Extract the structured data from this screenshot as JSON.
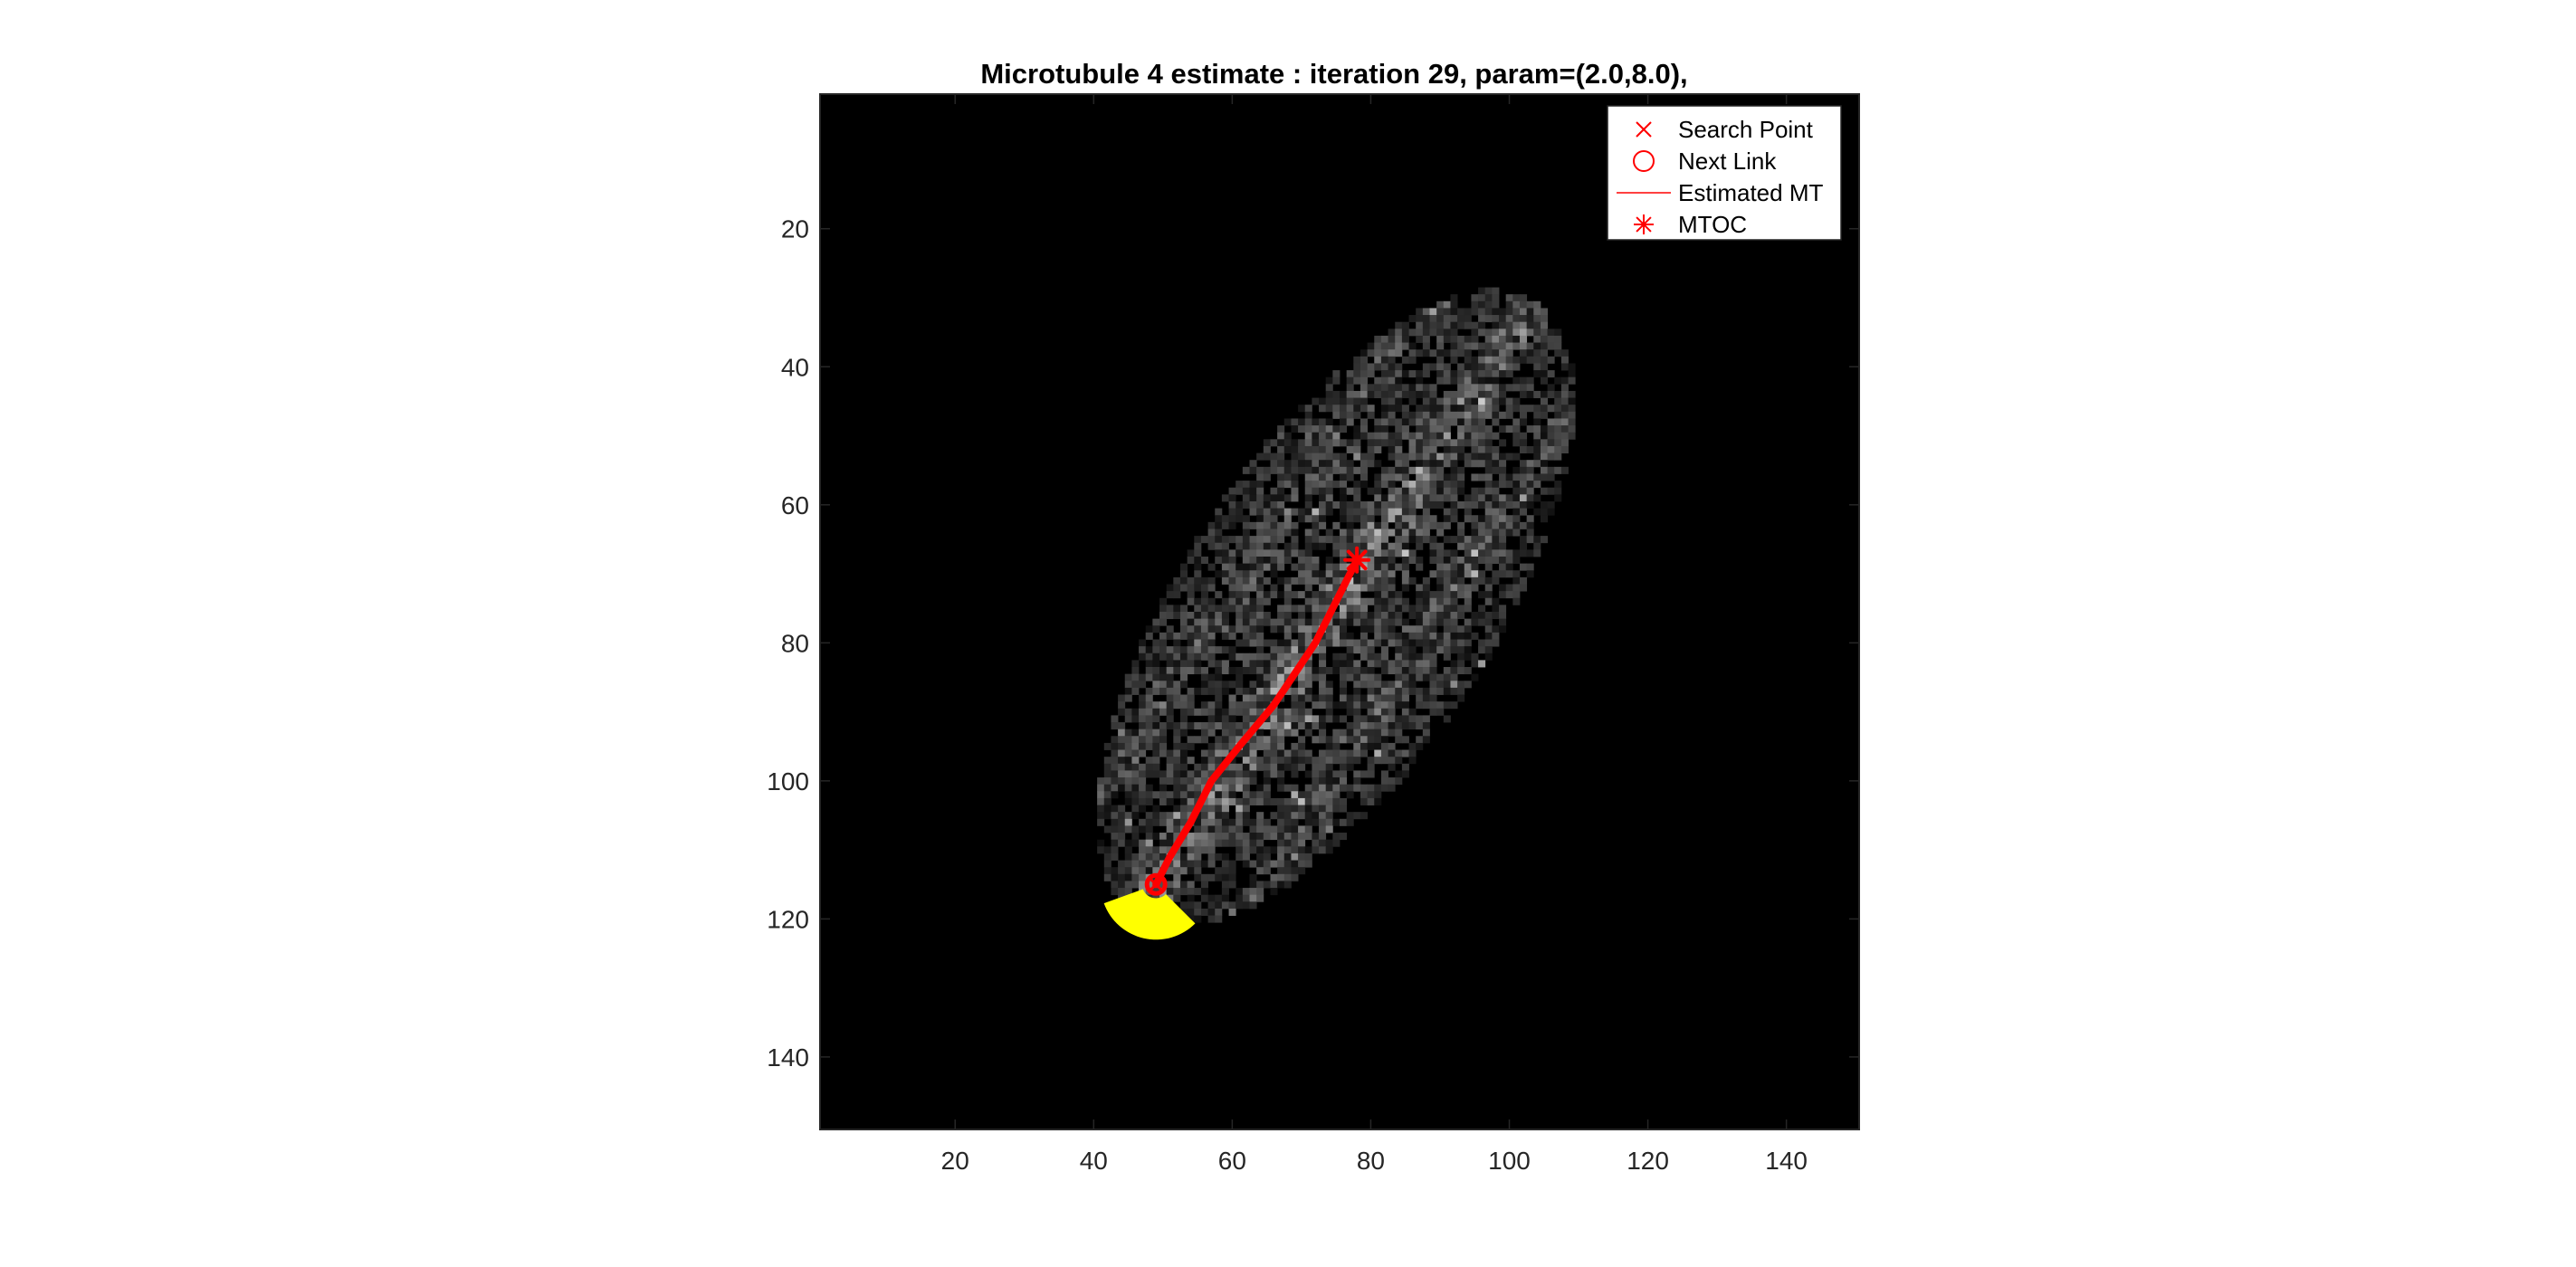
{
  "chart_data": {
    "type": "scatter",
    "title": "Microtubule 4 estimate : iteration 29, param=(2.0,8.0),",
    "xlabel": "",
    "ylabel": "",
    "xlim": [
      0.5,
      150.5
    ],
    "ylim": [
      0.5,
      150.5
    ],
    "y_reversed": true,
    "xticks": [
      20,
      40,
      60,
      80,
      100,
      120,
      140
    ],
    "yticks": [
      20,
      40,
      60,
      80,
      100,
      120,
      140
    ],
    "background_color": "#000000",
    "series_color": "#ff0000",
    "search_region_color": "#ffff00",
    "legend_position": "top-right",
    "legend": [
      {
        "marker": "x",
        "label": "Search Point"
      },
      {
        "marker": "o",
        "label": "Next Link"
      },
      {
        "marker": "line",
        "label": "Estimated MT"
      },
      {
        "marker": "asterisk",
        "label": "MTOC"
      }
    ],
    "estimated_mt": {
      "x": [
        78,
        76,
        72,
        66,
        61,
        57,
        54,
        51,
        49
      ],
      "y": [
        68,
        72,
        80,
        89,
        95,
        100,
        106,
        111,
        115
      ]
    },
    "mtoc": {
      "x": 78,
      "y": 68
    },
    "next_link": {
      "x": 49,
      "y": 115
    },
    "search_point": {
      "x": 49,
      "y": 115
    },
    "search_region": {
      "x": 49,
      "y": 115,
      "inner_radius": 2,
      "outer_radius": 8,
      "start_angle_deg": 45,
      "end_angle_deg": 160
    }
  }
}
